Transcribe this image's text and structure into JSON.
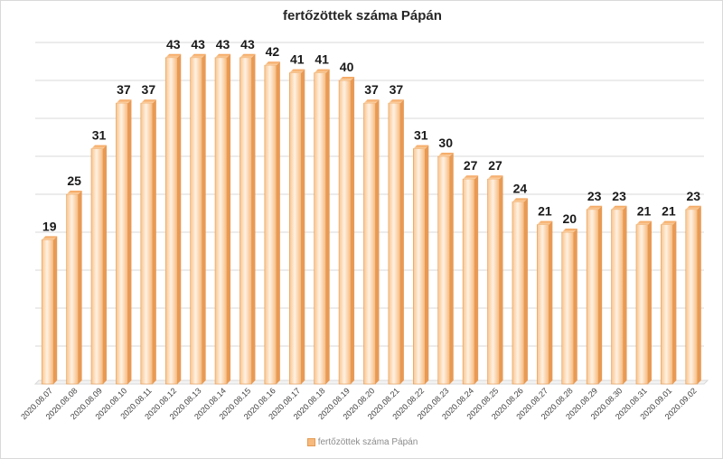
{
  "chart_data": {
    "type": "bar",
    "title": "fertőzöttek száma Pápán",
    "categories": [
      "2020.08.07",
      "2020.08.08",
      "2020.08.09",
      "2020.08.10",
      "2020.08.11",
      "2020.08.12",
      "2020.08.13",
      "2020.08.14",
      "2020.08.15",
      "2020.08.16",
      "2020.08.17",
      "2020.08.18",
      "2020.08.19",
      "2020.08.20",
      "2020.08.21",
      "2020.08.22",
      "2020.08.23",
      "2020.08.24",
      "2020.08.25",
      "2020.08.26",
      "2020.08.27",
      "2020.08.28",
      "2020.08.29",
      "2020.08.30",
      "2020.08.31",
      "2020.09.01",
      "2020.09.02"
    ],
    "series": [
      {
        "name": "fertőzöttek száma Pápán",
        "values": [
          19,
          25,
          31,
          37,
          37,
          43,
          43,
          43,
          43,
          42,
          41,
          41,
          40,
          37,
          37,
          31,
          30,
          27,
          27,
          24,
          21,
          20,
          23,
          23,
          21,
          21,
          23
        ]
      }
    ],
    "xlabel": "",
    "ylabel": "",
    "ylim": [
      0,
      45
    ],
    "grid": true,
    "legend": "bottom",
    "data_labels": true,
    "colors": {
      "bar": "#f7b97c",
      "bar_edge": "#e59a52",
      "gridline": "#d9d9d9"
    }
  }
}
